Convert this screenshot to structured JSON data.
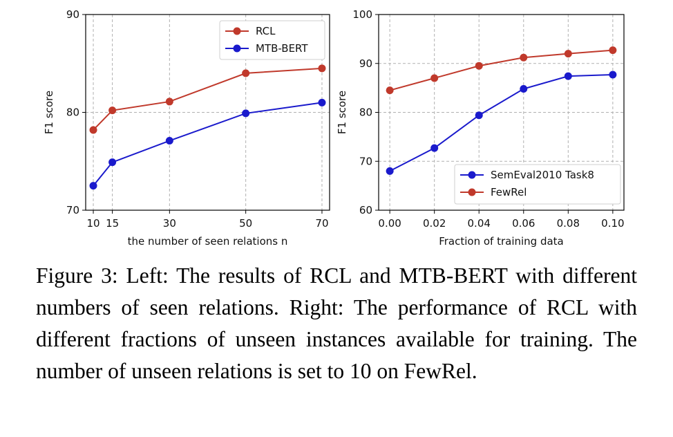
{
  "chart_data": [
    {
      "type": "line",
      "xlabel": "the number of seen relations n",
      "ylabel": "F1 score",
      "xlim": [
        8,
        72
      ],
      "ylim": [
        70,
        90
      ],
      "xticks": [
        10,
        15,
        30,
        50,
        70
      ],
      "xtick_labels": [
        "10",
        "15",
        "30",
        "50",
        "70"
      ],
      "yticks": [
        70,
        80,
        90
      ],
      "ytick_labels": [
        "70",
        "80",
        "90"
      ],
      "legend_position": "top-right",
      "grid": true,
      "series": [
        {
          "name": "RCL",
          "color": "#c0392b",
          "x": [
            10,
            15,
            30,
            50,
            70
          ],
          "y": [
            78.2,
            80.2,
            81.1,
            84.0,
            84.5
          ]
        },
        {
          "name": "MTB-BERT",
          "color": "#1a1acc",
          "x": [
            10,
            15,
            30,
            50,
            70
          ],
          "y": [
            72.5,
            74.9,
            77.1,
            79.9,
            81.0
          ]
        }
      ]
    },
    {
      "type": "line",
      "xlabel": "Fraction of training data",
      "ylabel": "F1 score",
      "xlim": [
        -0.005,
        0.105
      ],
      "ylim": [
        60,
        100
      ],
      "xticks": [
        0.0,
        0.02,
        0.04,
        0.06,
        0.08,
        0.1
      ],
      "xtick_labels": [
        "0.00",
        "0.02",
        "0.04",
        "0.06",
        "0.08",
        "0.10"
      ],
      "yticks": [
        60,
        70,
        80,
        90,
        100
      ],
      "ytick_labels": [
        "60",
        "70",
        "80",
        "90",
        "100"
      ],
      "legend_position": "bottom-right",
      "grid": true,
      "series": [
        {
          "name": "SemEval2010 Task8",
          "color": "#1a1acc",
          "x": [
            0.0,
            0.02,
            0.04,
            0.06,
            0.08,
            0.1
          ],
          "y": [
            68.0,
            72.7,
            79.4,
            84.8,
            87.4,
            87.7
          ]
        },
        {
          "name": "FewRel",
          "color": "#c0392b",
          "x": [
            0.0,
            0.02,
            0.04,
            0.06,
            0.08,
            0.1
          ],
          "y": [
            84.5,
            87.0,
            89.5,
            91.2,
            92.0,
            92.7
          ]
        }
      ]
    }
  ],
  "caption": "Figure 3: Left: The results of RCL and MTB-BERT with different numbers of seen relations. Right: The performance of RCL with different fractions of unseen instances available for training. The number of unseen relations is set to 10 on FewRel."
}
